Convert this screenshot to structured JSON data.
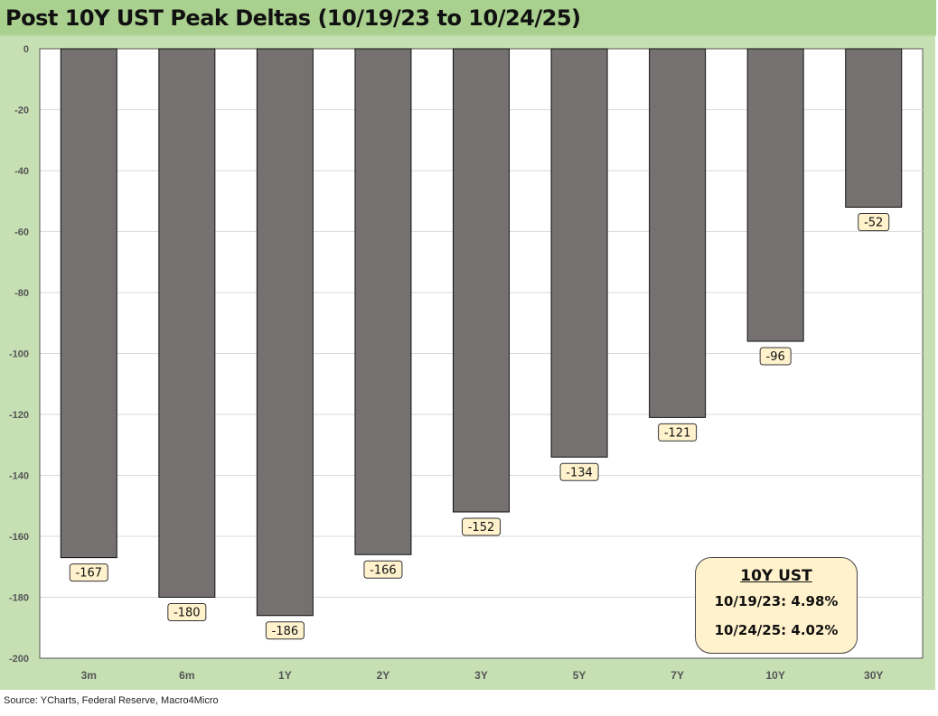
{
  "chart_data": {
    "type": "bar",
    "title": "Post 10Y UST Peak Deltas (10/19/23 to 10/24/25)",
    "categories": [
      "3m",
      "6m",
      "1Y",
      "2Y",
      "3Y",
      "5Y",
      "7Y",
      "10Y",
      "30Y"
    ],
    "values": [
      -167,
      -180,
      -186,
      -166,
      -152,
      -134,
      -121,
      -96,
      -52
    ],
    "data_labels": [
      "-167",
      "-180",
      "-186",
      "-166",
      "-152",
      "-134",
      "-121",
      "-96",
      "-52"
    ],
    "ylim": [
      -200,
      0
    ],
    "yticks": [
      0,
      -20,
      -40,
      -60,
      -80,
      -100,
      -120,
      -140,
      -160,
      -180,
      -200
    ],
    "xlabel": "",
    "ylabel": "",
    "grid": true,
    "colors": {
      "bar": "#757171",
      "label_bg": "#fff2cc",
      "panel": "#c6e0b4",
      "title_bar": "#a9d08e"
    }
  },
  "annotation": {
    "title": "10Y UST",
    "rows": [
      "10/19/23:  4.98%",
      "10/24/25:  4.02%"
    ]
  },
  "source": "Source: YCharts, Federal Reserve, Macro4Micro"
}
